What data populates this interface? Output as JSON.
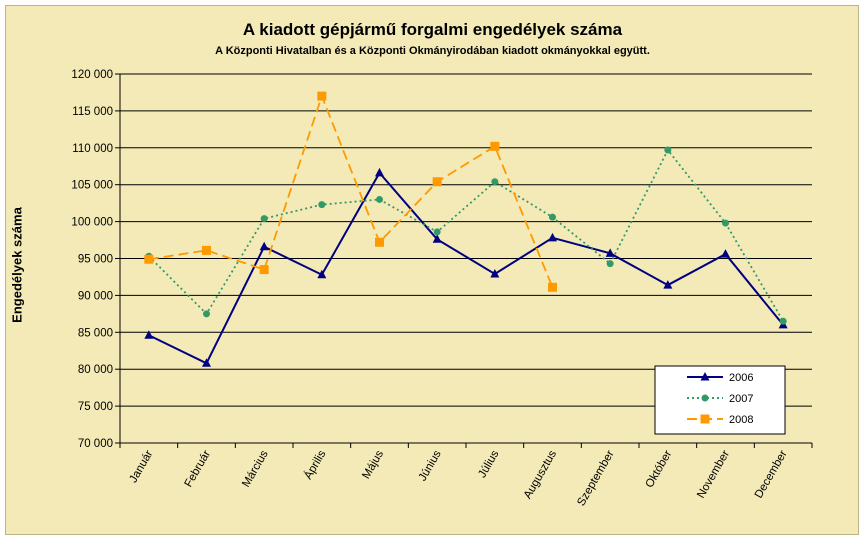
{
  "chart_data": {
    "type": "line",
    "title": "A  kiadott gépjármű forgalmi engedélyek száma",
    "subtitle": "A  Központi Hivatalban és a Központi Okmányirodában kiadott okmányokkal együtt.",
    "xlabel": "",
    "ylabel": "Engedélyek száma",
    "ylim": [
      70000,
      120000
    ],
    "yticks": [
      70000,
      75000,
      80000,
      85000,
      90000,
      95000,
      100000,
      105000,
      110000,
      115000,
      120000
    ],
    "ytick_labels": [
      "70 000",
      "75 000",
      "80 000",
      "85 000",
      "90 000",
      "95 000",
      "100 000",
      "105 000",
      "110 000",
      "115 000",
      "120 000"
    ],
    "grid": true,
    "legend_position": "bottom-right",
    "categories": [
      "Január",
      "Február",
      "Március",
      "Április",
      "Május",
      "Június",
      "Július",
      "Augusztus",
      "Szeptember",
      "Október",
      "November",
      "December"
    ],
    "series": [
      {
        "name": "2006",
        "color": "#000080",
        "style": "solid",
        "marker": "triangle",
        "values": [
          84600,
          80800,
          96600,
          92800,
          106600,
          97600,
          92900,
          97800,
          95700,
          91400,
          95600,
          86000
        ]
      },
      {
        "name": "2007",
        "color": "#339966",
        "style": "dotted",
        "marker": "circle",
        "values": [
          95300,
          87500,
          100400,
          102300,
          103000,
          98600,
          105400,
          100600,
          94300,
          109700,
          99800,
          86500
        ]
      },
      {
        "name": "2008",
        "color": "#FF9900",
        "style": "dashed",
        "marker": "square",
        "values": [
          94900,
          96100,
          93500,
          117000,
          97200,
          105400,
          110200,
          91100,
          null,
          null,
          null,
          null
        ]
      }
    ]
  }
}
